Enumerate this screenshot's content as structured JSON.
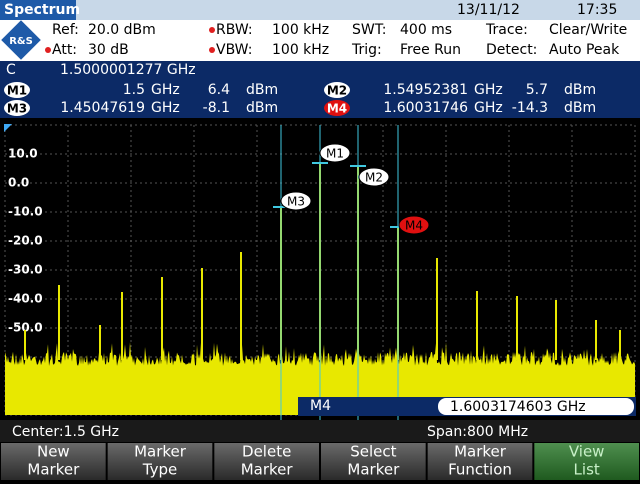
{
  "header": {
    "title": "Spectrum",
    "date": "13/11/12",
    "time": "17:35"
  },
  "settings": {
    "ref": "Ref:",
    "ref_value": "20.0 dBm",
    "att": "Att:",
    "att_value": "30 dB",
    "rbw": "RBW:",
    "rbw_value": "100 kHz",
    "vbw": "VBW:",
    "vbw_value": "100 kHz",
    "swt": "SWT:",
    "swt_value": "400 ms",
    "trig": "Trig:",
    "trig_value": "Free Run",
    "trace": "Trace:",
    "trace_value": "Clear/Write",
    "detect": "Detect:",
    "detect_value": "Auto Peak"
  },
  "center_marker": {
    "label": "C",
    "value": "1.5000001277 GHz"
  },
  "markers": [
    {
      "label": "M1",
      "freq": "1.5",
      "freq_unit": "GHz",
      "level": "6.4",
      "level_unit": "dBm"
    },
    {
      "label": "M2",
      "freq": "1.54952381",
      "freq_unit": "GHz",
      "level": "5.7",
      "level_unit": "dBm"
    },
    {
      "label": "M3",
      "freq": "1.45047619",
      "freq_unit": "GHz",
      "level": "-8.1",
      "level_unit": "dBm"
    },
    {
      "label": "M4",
      "freq": "1.60031746",
      "freq_unit": "GHz",
      "level": "-14.3",
      "level_unit": "dBm"
    }
  ],
  "y_axis_labels": [
    "10.0",
    "0.0",
    "-10.0",
    "-20.0",
    "-30.0",
    "-40.0",
    "-50.0"
  ],
  "active_marker": {
    "label": "M4",
    "value": "1.6003174603 GHz"
  },
  "footer": {
    "center": "Center:1.5 GHz",
    "span": "Span:800 MHz"
  },
  "softkeys": [
    [
      "New",
      "Marker"
    ],
    [
      "Marker",
      "Type"
    ],
    [
      "Delete",
      "Marker"
    ],
    [
      "Select",
      "Marker"
    ],
    [
      "Marker",
      "Function"
    ],
    [
      "View",
      "List"
    ]
  ]
}
